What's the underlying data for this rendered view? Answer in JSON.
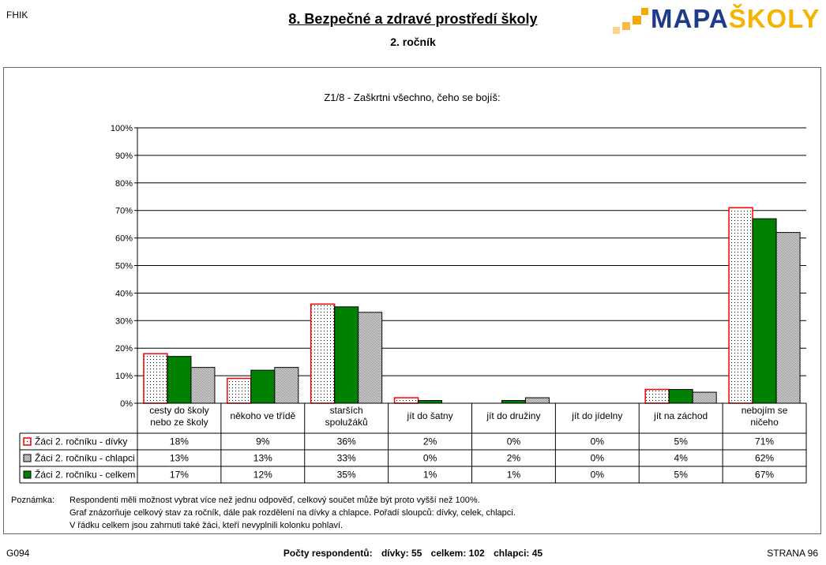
{
  "header": {
    "org": "FHIK",
    "title": "8. Bezpečné a zdravé prostředí školy",
    "subtitle": "2. ročník",
    "logo": {
      "part1": "MAPA",
      "part2": "ŠKOLY",
      "icon": "mapaskoly-logo-icon",
      "colors": {
        "blue": "#1f3a8a",
        "gold": "#f5b400",
        "squares": "#f6a700"
      }
    }
  },
  "chart_data": {
    "type": "bar",
    "title": "Z1/8 - Zaškrtni všechno, čeho se bojíš:",
    "categories": [
      [
        "cesty do školy",
        "nebo ze školy"
      ],
      [
        "někoho ve třídě"
      ],
      [
        "starších",
        "spolužáků"
      ],
      [
        "jít do šatny"
      ],
      [
        "jít do družiny"
      ],
      [
        "jít do jídelny"
      ],
      [
        "jít na záchod"
      ],
      [
        "nebojím se",
        "ničeho"
      ]
    ],
    "ylim": [
      0,
      100
    ],
    "yticks": [
      "0%",
      "10%",
      "20%",
      "30%",
      "40%",
      "50%",
      "60%",
      "70%",
      "80%",
      "90%",
      "100%"
    ],
    "grid": true,
    "bar_order": [
      0,
      2,
      1
    ],
    "series": [
      {
        "name": "Žáci 2. ročníku - dívky",
        "values": [
          18,
          9,
          36,
          2,
          0,
          0,
          5,
          71
        ],
        "labels": [
          "18%",
          "9%",
          "36%",
          "2%",
          "0%",
          "0%",
          "5%",
          "71%"
        ],
        "fill": "#ffffff",
        "stroke": "#ff0000",
        "pattern": "dots"
      },
      {
        "name": "Žáci 2. ročníku - chlapci",
        "values": [
          13,
          13,
          33,
          0,
          2,
          0,
          4,
          62
        ],
        "labels": [
          "13%",
          "13%",
          "33%",
          "0%",
          "2%",
          "0%",
          "4%",
          "62%"
        ],
        "fill": "#d0d0d0",
        "stroke": "#000000",
        "pattern": "checker"
      },
      {
        "name": "Žáci 2. ročníku - celkem",
        "values": [
          17,
          12,
          35,
          1,
          1,
          0,
          5,
          67
        ],
        "labels": [
          "17%",
          "12%",
          "35%",
          "1%",
          "1%",
          "0%",
          "5%",
          "67%"
        ],
        "fill": "#008000",
        "stroke": "#000000",
        "pattern": "solid"
      }
    ]
  },
  "notes": {
    "label": "Poznámka:",
    "lines": [
      "Respondenti měli možnost vybrat více než jednu odpověď, celkový součet může být proto vyšší než 100%.",
      "Graf znázorňuje celkový stav za ročník, dále pak rozdělení na dívky a chlapce. Pořadí sloupců: dívky, celek, chlapci.",
      "V řádku celkem jsou zahrnuti také žáci, kteří nevyplnili kolonku pohlaví."
    ]
  },
  "footer": {
    "left": "G094",
    "respondents_label": "Počty respondentů:",
    "girls": "dívky: 55",
    "total": "celkem: 102",
    "boys": "chlapci: 45",
    "page": "STRANA 96"
  }
}
